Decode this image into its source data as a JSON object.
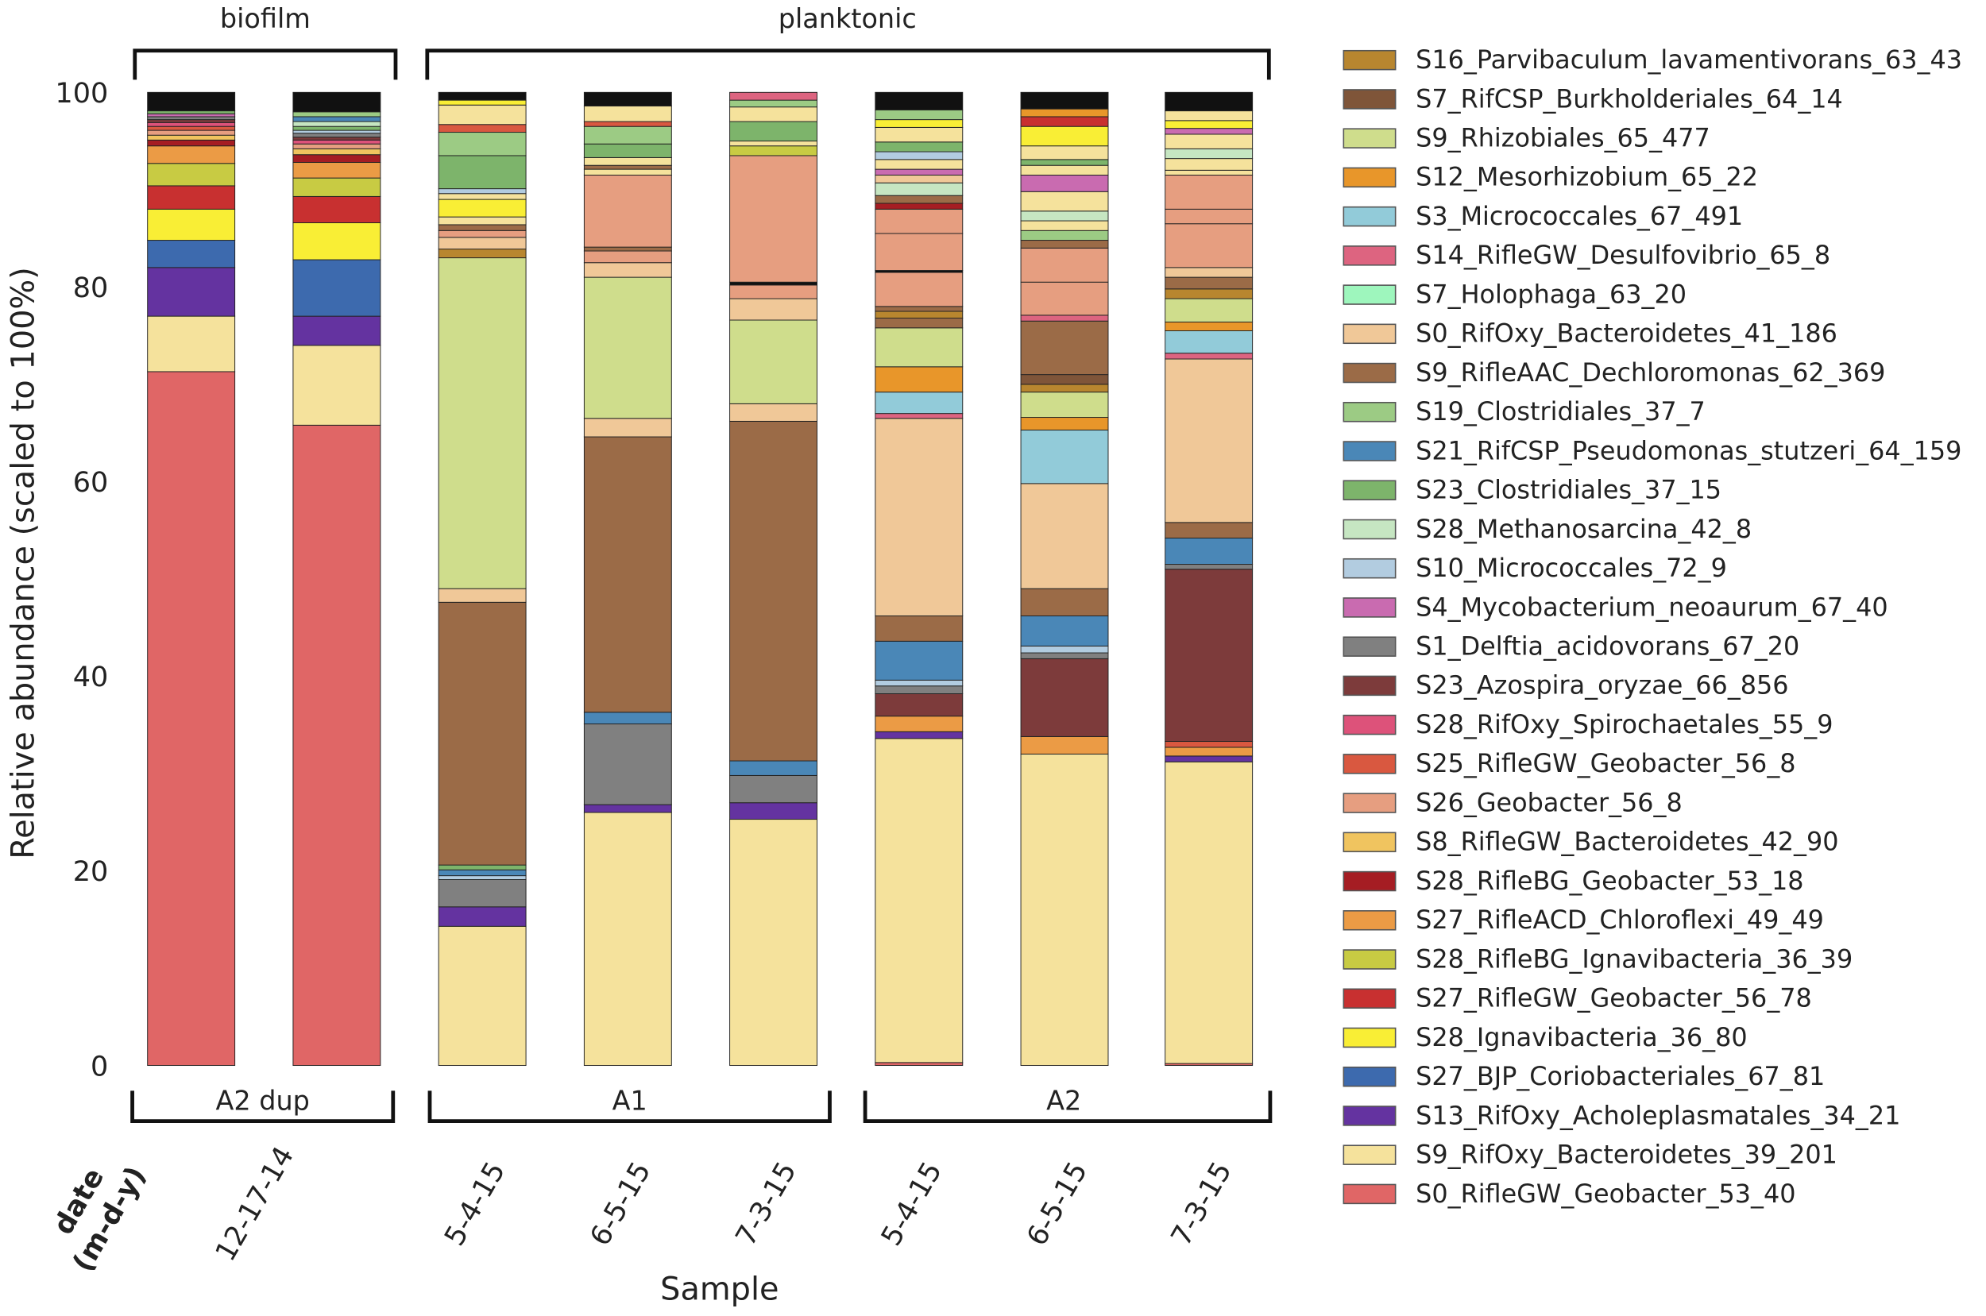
{
  "chart_data": {
    "type": "bar",
    "stacked": true,
    "xlabel": "Sample",
    "ylabel": "Relative abundance (scaled to 100%)",
    "ylim": [
      0,
      100
    ],
    "yticks": [
      "0",
      "20",
      "40",
      "60",
      "80",
      "100"
    ],
    "ytick_values": [
      0,
      20,
      40,
      60,
      80,
      100
    ],
    "date_axis_label": [
      "date",
      "(m-d-y)"
    ],
    "top_groups": [
      {
        "label": "biofilm"
      },
      {
        "label": "planktonic"
      }
    ],
    "bottom_groups": [
      {
        "label": "A2 dup"
      },
      {
        "label": "A1"
      },
      {
        "label": "A2"
      }
    ],
    "date_labels": [
      "12-17-14",
      "5-4-15",
      "6-5-15",
      "7-3-15",
      "5-4-15",
      "6-5-15",
      "7-3-15"
    ],
    "other_color": "#111111",
    "legend": [
      {
        "name": "S16_Parvibaculum_lavamentivorans_63_43",
        "color": "#b8862f"
      },
      {
        "name": "S7_RifCSP_Burkholderiales_64_14",
        "color": "#7f5539"
      },
      {
        "name": "S9_Rhizobiales_65_477",
        "color": "#cfdd8c"
      },
      {
        "name": "S12_Mesorhizobium_65_22",
        "color": "#e8962a"
      },
      {
        "name": "S3_Micrococcales_67_491",
        "color": "#92cbd9"
      },
      {
        "name": "S14_RifleGW_Desulfovibrio_65_8",
        "color": "#dd6480"
      },
      {
        "name": "S7_Holophaga_63_20",
        "color": "#9ef6bd"
      },
      {
        "name": "S0_RifOxy_Bacteroidetes_41_186",
        "color": "#f0c898"
      },
      {
        "name": "S9_RifleAAC_Dechloromonas_62_369",
        "color": "#9b6b47"
      },
      {
        "name": "S19_Clostridiales_37_7",
        "color": "#9ccb84"
      },
      {
        "name": "S21_RifCSP_Pseudomonas_stutzeri_64_159",
        "color": "#4a87b7"
      },
      {
        "name": "S23_Clostridiales_37_15",
        "color": "#7db46b"
      },
      {
        "name": "S28_Methanosarcina_42_8",
        "color": "#c6e6c2"
      },
      {
        "name": "S10_Micrococcales_72_9",
        "color": "#b2cce0"
      },
      {
        "name": "S4_Mycobacterium_neoaurum_67_40",
        "color": "#c96bb0"
      },
      {
        "name": "S1_Delftia_acidovorans_67_20",
        "color": "#808080"
      },
      {
        "name": "S23_Azospira_oryzae_66_856",
        "color": "#7d3b3b"
      },
      {
        "name": "S28_RifOxy_Spirochaetales_55_9",
        "color": "#dd527a"
      },
      {
        "name": "S25_RifleGW_Geobacter_56_8",
        "color": "#d95840"
      },
      {
        "name": "S26_Geobacter_56_8",
        "color": "#e69e80"
      },
      {
        "name": "S8_RifleGW_Bacteroidetes_42_90",
        "color": "#f0c45f"
      },
      {
        "name": "S28_RifleBG_Geobacter_53_18",
        "color": "#a51d23"
      },
      {
        "name": "S27_RifleACD_Chloroflexi_49_49",
        "color": "#eb9b45"
      },
      {
        "name": "S28_RifleBG_Ignavibacteria_36_39",
        "color": "#c8cb43"
      },
      {
        "name": "S27_RifleGW_Geobacter_56_78",
        "color": "#c83030"
      },
      {
        "name": "S28_Ignavibacteria_36_80",
        "color": "#f9ee35"
      },
      {
        "name": "S27_BJP_Coriobacteriales_67_81",
        "color": "#3d6aae"
      },
      {
        "name": "S13_RifOxy_Acholeplasmatales_34_21",
        "color": "#6433a0"
      },
      {
        "name": "S9_RifOxy_Bacteroidetes_39_201",
        "color": "#f5e29c"
      },
      {
        "name": "S0_RifleGW_Geobacter_53_40",
        "color": "#e06666"
      }
    ],
    "bars": [
      {
        "group": "A2 dup",
        "date": "12-17-14",
        "segments": [
          [
            29,
            71.3
          ],
          [
            28,
            5.7
          ],
          [
            27,
            5
          ],
          [
            26,
            2.8
          ],
          [
            25,
            3.2
          ],
          [
            24,
            2.4
          ],
          [
            23,
            2.3
          ],
          [
            22,
            1.8
          ],
          [
            21,
            0.6
          ],
          [
            20,
            0.5
          ],
          [
            19,
            0.5
          ],
          [
            18,
            0.4
          ],
          [
            17,
            0.4
          ],
          [
            16,
            0.3
          ],
          [
            15,
            0.3
          ],
          [
            14,
            0.3
          ],
          [
            11,
            0.3
          ],
          [
            -1,
            1.9
          ]
        ]
      },
      {
        "group": "A2 dup",
        "date": "12-17-14",
        "segments": [
          [
            29,
            65.8
          ],
          [
            28,
            8.2
          ],
          [
            27,
            3
          ],
          [
            26,
            5.8
          ],
          [
            25,
            3.8
          ],
          [
            24,
            2.7
          ],
          [
            23,
            1.9
          ],
          [
            22,
            1.6
          ],
          [
            21,
            0.8
          ],
          [
            20,
            0.6
          ],
          [
            19,
            0.5
          ],
          [
            17,
            0.4
          ],
          [
            16,
            0.3
          ],
          [
            15,
            0.4
          ],
          [
            13,
            0.3
          ],
          [
            11,
            0.4
          ],
          [
            12,
            0.5
          ],
          [
            10,
            0.5
          ],
          [
            9,
            0.5
          ],
          [
            -1,
            2
          ]
        ]
      },
      {
        "group": "A1",
        "date": "5-4-15",
        "segments": [
          [
            28,
            14.3
          ],
          [
            27,
            2
          ],
          [
            15,
            2.8
          ],
          [
            13,
            0.4
          ],
          [
            10,
            0.6
          ],
          [
            11,
            0.5
          ],
          [
            8,
            27
          ],
          [
            7,
            1.4
          ],
          [
            2,
            34
          ],
          [
            0,
            0.9
          ],
          [
            7,
            1.2
          ],
          [
            19,
            0.7
          ],
          [
            8,
            0.6
          ],
          [
            28,
            0.8
          ],
          [
            25,
            1.8
          ],
          [
            28,
            0.6
          ],
          [
            13,
            0.5
          ],
          [
            11,
            3.4
          ],
          [
            9,
            2.4
          ],
          [
            18,
            0.8
          ],
          [
            28,
            2
          ],
          [
            25,
            0.5
          ],
          [
            -1,
            0.8
          ]
        ]
      },
      {
        "group": "A1",
        "date": "6-5-15",
        "segments": [
          [
            28,
            26
          ],
          [
            27,
            0.8
          ],
          [
            15,
            8.3
          ],
          [
            10,
            1.2
          ],
          [
            8,
            28.3
          ],
          [
            7,
            1.9
          ],
          [
            2,
            14.5
          ],
          [
            7,
            1.5
          ],
          [
            19,
            1.2
          ],
          [
            8,
            0.4
          ],
          [
            19,
            7.4
          ],
          [
            28,
            0.6
          ],
          [
            8,
            0.4
          ],
          [
            28,
            0.8
          ],
          [
            11,
            1.4
          ],
          [
            9,
            1.8
          ],
          [
            18,
            0.5
          ],
          [
            28,
            1.6
          ],
          [
            -1,
            1.4
          ]
        ]
      },
      {
        "group": "A1",
        "date": "7-3-15",
        "segments": [
          [
            28,
            25.3
          ],
          [
            27,
            1.7
          ],
          [
            15,
            2.8
          ],
          [
            10,
            1.5
          ],
          [
            8,
            34.9
          ],
          [
            7,
            1.8
          ],
          [
            2,
            8.6
          ],
          [
            7,
            2.2
          ],
          [
            19,
            1.4
          ],
          [
            -1,
            0.3
          ],
          [
            19,
            13
          ],
          [
            23,
            1
          ],
          [
            28,
            0.5
          ],
          [
            11,
            2
          ],
          [
            28,
            1.5
          ],
          [
            9,
            0.7
          ],
          [
            5,
            0.8
          ]
        ]
      },
      {
        "group": "A2",
        "date": "5-4-15",
        "segments": [
          [
            29,
            0.3
          ],
          [
            28,
            33.3
          ],
          [
            27,
            0.7
          ],
          [
            22,
            1.6
          ],
          [
            16,
            2.3
          ],
          [
            15,
            0.8
          ],
          [
            13,
            0.6
          ],
          [
            10,
            4
          ],
          [
            8,
            2.6
          ],
          [
            7,
            20.3
          ],
          [
            5,
            0.5
          ],
          [
            4,
            2.2
          ],
          [
            3,
            2.6
          ],
          [
            2,
            4
          ],
          [
            8,
            1
          ],
          [
            0,
            0.7
          ],
          [
            8,
            0.5
          ],
          [
            19,
            3.5
          ],
          [
            -1,
            0.2
          ],
          [
            19,
            3.8
          ],
          [
            19,
            2.5
          ],
          [
            21,
            0.6
          ],
          [
            8,
            0.8
          ],
          [
            12,
            1.3
          ],
          [
            7,
            0.8
          ],
          [
            14,
            0.6
          ],
          [
            28,
            1
          ],
          [
            13,
            0.8
          ],
          [
            11,
            1
          ],
          [
            28,
            1.5
          ],
          [
            25,
            0.8
          ],
          [
            9,
            1
          ],
          [
            -1,
            1.8
          ]
        ]
      },
      {
        "group": "A2",
        "date": "6-5-15",
        "segments": [
          [
            28,
            32
          ],
          [
            22,
            1.8
          ],
          [
            16,
            8
          ],
          [
            15,
            0.6
          ],
          [
            13,
            0.7
          ],
          [
            10,
            3.1
          ],
          [
            8,
            2.8
          ],
          [
            7,
            10.8
          ],
          [
            4,
            5.5
          ],
          [
            3,
            1.3
          ],
          [
            2,
            2.6
          ],
          [
            0,
            0.8
          ],
          [
            1,
            1
          ],
          [
            8,
            5.5
          ],
          [
            5,
            0.6
          ],
          [
            19,
            3.4
          ],
          [
            19,
            3.5
          ],
          [
            8,
            0.8
          ],
          [
            9,
            1
          ],
          [
            28,
            1
          ],
          [
            12,
            1
          ],
          [
            28,
            2
          ],
          [
            14,
            1.7
          ],
          [
            28,
            1
          ],
          [
            11,
            0.6
          ],
          [
            28,
            1.4
          ],
          [
            25,
            2
          ],
          [
            24,
            1
          ],
          [
            3,
            0.8
          ],
          [
            -1,
            1.7
          ]
        ]
      },
      {
        "group": "A2",
        "date": "7-3-15",
        "segments": [
          [
            29,
            0.2
          ],
          [
            28,
            31
          ],
          [
            27,
            0.6
          ],
          [
            22,
            0.9
          ],
          [
            18,
            0.6
          ],
          [
            16,
            17.7
          ],
          [
            15,
            0.5
          ],
          [
            10,
            2.7
          ],
          [
            8,
            1.6
          ],
          [
            7,
            16.8
          ],
          [
            5,
            0.6
          ],
          [
            4,
            2.3
          ],
          [
            3,
            0.9
          ],
          [
            2,
            2.4
          ],
          [
            0,
            1
          ],
          [
            8,
            1.2
          ],
          [
            7,
            1
          ],
          [
            19,
            4.5
          ],
          [
            19,
            1.5
          ],
          [
            19,
            3.5
          ],
          [
            28,
            0.5
          ],
          [
            28,
            1.2
          ],
          [
            12,
            1
          ],
          [
            28,
            1.5
          ],
          [
            14,
            0.6
          ],
          [
            25,
            0.8
          ],
          [
            28,
            1
          ],
          [
            -1,
            1.9
          ]
        ]
      }
    ]
  }
}
